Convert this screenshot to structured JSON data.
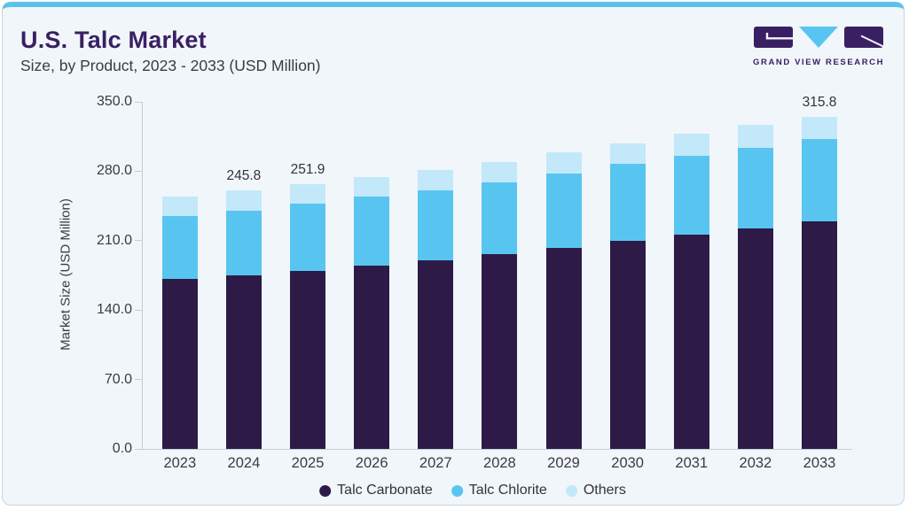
{
  "header": {
    "title": "U.S. Talc Market",
    "subtitle": "Size, by Product, 2023 - 2033 (USD Million)",
    "brand": "GRAND VIEW RESEARCH"
  },
  "colors": {
    "card_background": "#f0f6fa",
    "top_accent": "#5cc2eb",
    "card_border": "#c9d4db",
    "title_purple": "#3a2063",
    "body_text": "#3b3b44",
    "axis_line": "#c6ced5",
    "talc_carbonate": "#2e1a47",
    "talc_chlorite": "#58c5f1",
    "others": "#c3e8f9"
  },
  "chart_data": {
    "type": "bar",
    "stacked": true,
    "title": "U.S. Talc Market",
    "subtitle": "Size, by Product, 2023 - 2033 (USD Million)",
    "categories": [
      "2023",
      "2024",
      "2025",
      "2026",
      "2027",
      "2028",
      "2029",
      "2030",
      "2031",
      "2032",
      "2033"
    ],
    "series": [
      {
        "name": "Talc Carbonate",
        "color": "#2e1a47",
        "values": [
          161.3,
          164.8,
          169.5,
          174.1,
          179.6,
          185.2,
          191.5,
          198.0,
          204.0,
          210.0,
          216.8
        ]
      },
      {
        "name": "Talc Chlorite",
        "color": "#58c5f1",
        "values": [
          60.0,
          62.0,
          63.6,
          66.0,
          66.5,
          68.0,
          70.2,
          73.3,
          74.5,
          76.7,
          78.0
        ]
      },
      {
        "name": "Others",
        "color": "#c3e8f9",
        "values": [
          19.0,
          19.0,
          18.8,
          18.3,
          19.3,
          20.0,
          20.1,
          19.5,
          21.0,
          21.3,
          21.0
        ]
      }
    ],
    "totals": [
      240.3,
      245.8,
      251.9,
      258.4,
      265.4,
      273.2,
      281.8,
      290.8,
      299.5,
      308.0,
      315.8
    ],
    "bar_labels": {
      "2024": "245.8",
      "2025": "251.9",
      "2033": "315.8"
    },
    "ylabel": "Market Size (USD Million)",
    "ylim": [
      0,
      350
    ],
    "ytick_step": 70,
    "yticks": [
      "350.0",
      "280.0",
      "210.0",
      "140.0",
      "70.0",
      "0.0"
    ],
    "legend": [
      "Talc Carbonate",
      "Talc Chlorite",
      "Others"
    ],
    "legend_position": "bottom",
    "grid": false
  }
}
